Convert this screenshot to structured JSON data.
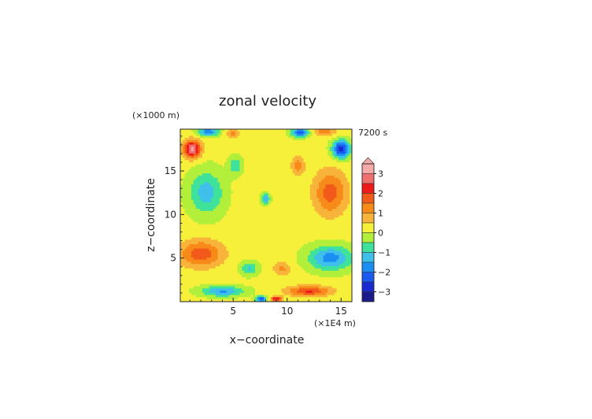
{
  "chart_data": {
    "type": "heatmap",
    "title": "zonal velocity",
    "xlabel": "x−coordinate",
    "ylabel": "z−coordinate",
    "x_units": "(×1E4 m)",
    "y_units": "(×1000 m)",
    "time_label": "7200 s",
    "xlim": [
      0.1,
      16
    ],
    "ylim": [
      0,
      19.8
    ],
    "x_ticks": [
      5,
      10,
      15
    ],
    "y_ticks": [
      5,
      10,
      15
    ],
    "grid": false,
    "colorbar": {
      "placement": "right",
      "extend": "max",
      "range": [
        -3.5,
        3.5
      ],
      "tick_values": [
        3,
        2,
        1,
        0,
        -1,
        -2,
        -3
      ],
      "tick_labels": [
        "3",
        "2",
        "1",
        "0",
        "−1",
        "−2",
        "−3"
      ],
      "levels": [
        {
          "min": 3.0,
          "max": 3.5,
          "color": "#f5aaaa"
        },
        {
          "min": 2.5,
          "max": 3.0,
          "color": "#f07070"
        },
        {
          "min": 2.0,
          "max": 2.5,
          "color": "#ee1a1a"
        },
        {
          "min": 1.5,
          "max": 2.0,
          "color": "#f25a1a"
        },
        {
          "min": 1.0,
          "max": 1.5,
          "color": "#f88a1a"
        },
        {
          "min": 0.5,
          "max": 1.0,
          "color": "#f8b43a"
        },
        {
          "min": 0.0,
          "max": 0.5,
          "color": "#f7f03a"
        },
        {
          "min": -0.5,
          "max": 0.0,
          "color": "#b2ef3a"
        },
        {
          "min": -1.0,
          "max": -0.5,
          "color": "#3ee29a"
        },
        {
          "min": -1.5,
          "max": -1.0,
          "color": "#3ec0ea"
        },
        {
          "min": -2.0,
          "max": -1.5,
          "color": "#1a8ef2"
        },
        {
          "min": -2.5,
          "max": -2.0,
          "color": "#1a5af0"
        },
        {
          "min": -3.0,
          "max": -2.5,
          "color": "#1a2ad0"
        },
        {
          "min": -3.5,
          "max": -3.0,
          "color": "#1a1a8a"
        }
      ]
    },
    "field_features": [
      {
        "x": 1.2,
        "z": 17.5,
        "sx": 0.8,
        "sz": 1.0,
        "value": 3.0
      },
      {
        "x": 15.0,
        "z": 17.5,
        "sx": 0.8,
        "sz": 1.0,
        "value": -3.0
      },
      {
        "x": 2.7,
        "z": 19.5,
        "sx": 1.0,
        "sz": 0.5,
        "value": -2.0
      },
      {
        "x": 13.5,
        "z": 19.5,
        "sx": 1.0,
        "sz": 0.5,
        "value": 1.2
      },
      {
        "x": 5.0,
        "z": 19.3,
        "sx": 0.7,
        "sz": 0.5,
        "value": 1.0
      },
      {
        "x": 11.2,
        "z": 19.4,
        "sx": 0.8,
        "sz": 0.5,
        "value": -2.5
      },
      {
        "x": 2.5,
        "z": 12.5,
        "sx": 1.6,
        "sz": 2.5,
        "value": -1.4
      },
      {
        "x": 14.0,
        "z": 12.5,
        "sx": 1.5,
        "sz": 2.5,
        "value": 1.6
      },
      {
        "x": 2.0,
        "z": 5.5,
        "sx": 2.0,
        "sz": 1.5,
        "value": 1.7
      },
      {
        "x": 14.0,
        "z": 5.0,
        "sx": 2.0,
        "sz": 1.4,
        "value": -1.9
      },
      {
        "x": 4.0,
        "z": 1.2,
        "sx": 2.0,
        "sz": 0.6,
        "value": -1.7
      },
      {
        "x": 12.0,
        "z": 1.2,
        "sx": 2.0,
        "sz": 0.6,
        "value": 1.9
      },
      {
        "x": 8.0,
        "z": 11.8,
        "sx": 0.4,
        "sz": 0.6,
        "value": -1.6
      },
      {
        "x": 5.2,
        "z": 15.6,
        "sx": 0.6,
        "sz": 1.0,
        "value": -1.1
      },
      {
        "x": 11.0,
        "z": 15.6,
        "sx": 0.6,
        "sz": 1.0,
        "value": 1.2
      },
      {
        "x": 6.5,
        "z": 3.8,
        "sx": 0.8,
        "sz": 0.8,
        "value": -1.2
      },
      {
        "x": 9.5,
        "z": 3.8,
        "sx": 0.8,
        "sz": 0.8,
        "value": 1.0
      },
      {
        "x": 7.6,
        "z": 0.3,
        "sx": 0.5,
        "sz": 0.3,
        "value": -2.8
      },
      {
        "x": 9.0,
        "z": 0.3,
        "sx": 0.5,
        "sz": 0.3,
        "value": 2.5
      }
    ]
  }
}
